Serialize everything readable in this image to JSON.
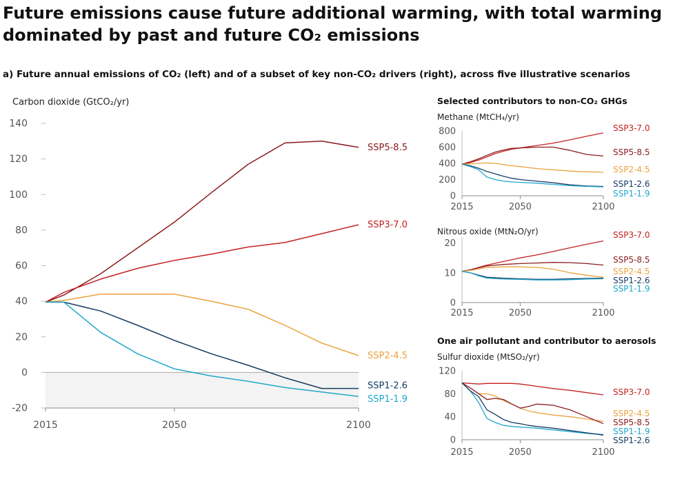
{
  "title_line1": "Future emissions cause future additional warming, with total warming",
  "title_line2": "dominated by past and future CO₂ emissions",
  "subtitle": "a) Future annual emissions of CO₂ (left) and of a subset of key non-CO₂ drivers (right), across five illustrative scenarios",
  "right_heading_ghg": "Selected contributors to non-CO₂ GHGs",
  "right_heading_aerosol": "One air pollutant and contributor to aerosols",
  "colors": {
    "SSP1-1.9": "#1fa6cc",
    "SSP1-2.6": "#163b63",
    "SSP2-4.5": "#eba13b",
    "SSP3-7.0": "#c4201f",
    "SSP5-8.5": "#8a1a1c",
    "axis": "#bbbbbb",
    "negative_fill": "#f3f3f3"
  },
  "chart_data": [
    {
      "type": "line",
      "ylabel": "Carbon dioxide (GtCO₂/yr)",
      "xlim": [
        2015,
        2100
      ],
      "ylim": [
        -20,
        140
      ],
      "xticks": [
        2015,
        2050,
        2100
      ],
      "yticks": [
        -20,
        0,
        20,
        40,
        60,
        80,
        100,
        120,
        140
      ],
      "shade_below_zero": true,
      "x": [
        2015,
        2020,
        2030,
        2040,
        2050,
        2060,
        2070,
        2080,
        2090,
        2100
      ],
      "series": [
        {
          "name": "SSP5-8.5",
          "values": [
            39.5,
            43.5,
            55.5,
            70,
            84.5,
            101,
            117,
            129,
            130,
            126.5
          ]
        },
        {
          "name": "SSP3-7.0",
          "values": [
            39.5,
            45,
            52.5,
            58.5,
            63,
            66.5,
            70.5,
            73,
            78,
            83
          ]
        },
        {
          "name": "SSP2-4.5",
          "values": [
            39.5,
            40.5,
            44,
            44,
            44,
            40,
            35.5,
            26.5,
            16.5,
            9.5
          ]
        },
        {
          "name": "SSP1-2.6",
          "values": [
            39.5,
            39.5,
            34.5,
            26.5,
            18,
            10.5,
            4,
            -3,
            -9,
            -9
          ]
        },
        {
          "name": "SSP1-1.9",
          "values": [
            39.5,
            39.5,
            22.5,
            10.5,
            2,
            -2,
            -5,
            -8.5,
            -11,
            -13.5
          ]
        }
      ],
      "label_order_bottom": [
        "SSP1-2.6",
        "SSP1-1.9"
      ]
    },
    {
      "type": "line",
      "ylabel": "Methane (MtCH₄/yr)",
      "xlim": [
        2015,
        2100
      ],
      "ylim": [
        0,
        800
      ],
      "xticks": [
        2015,
        2050,
        2100
      ],
      "yticks": [
        0,
        200,
        400,
        600,
        800
      ],
      "x": [
        2015,
        2020,
        2025,
        2030,
        2035,
        2040,
        2045,
        2050,
        2060,
        2070,
        2080,
        2090,
        2100
      ],
      "series": [
        {
          "name": "SSP3-7.0",
          "values": [
            390,
            410,
            440,
            480,
            520,
            550,
            575,
            590,
            620,
            650,
            690,
            735,
            775
          ]
        },
        {
          "name": "SSP5-8.5",
          "values": [
            390,
            420,
            455,
            500,
            540,
            565,
            585,
            590,
            600,
            600,
            560,
            510,
            490
          ]
        },
        {
          "name": "SSP2-4.5",
          "values": [
            390,
            395,
            400,
            405,
            400,
            385,
            370,
            360,
            335,
            320,
            305,
            295,
            290
          ]
        },
        {
          "name": "SSP1-2.6",
          "values": [
            390,
            370,
            340,
            300,
            270,
            240,
            215,
            200,
            180,
            160,
            135,
            120,
            115
          ]
        },
        {
          "name": "SSP1-1.9",
          "values": [
            390,
            360,
            320,
            230,
            200,
            180,
            170,
            165,
            155,
            140,
            125,
            115,
            110
          ]
        }
      ]
    },
    {
      "type": "line",
      "ylabel": "Nitrous oxide (MtN₂O/yr)",
      "xlim": [
        2015,
        2100
      ],
      "ylim": [
        0,
        22
      ],
      "xticks": [
        2015,
        2050,
        2100
      ],
      "yticks": [
        0,
        10,
        20
      ],
      "x": [
        2015,
        2020,
        2025,
        2030,
        2040,
        2050,
        2060,
        2070,
        2080,
        2090,
        2100
      ],
      "series": [
        {
          "name": "SSP3-7.0",
          "values": [
            10.5,
            11,
            11.8,
            12.6,
            13.8,
            15,
            16,
            17.2,
            18.4,
            19.6,
            20.7
          ]
        },
        {
          "name": "SSP5-8.5",
          "values": [
            10.5,
            11,
            11.7,
            12.3,
            12.8,
            13.1,
            13.3,
            13.5,
            13.4,
            13.1,
            12.6
          ]
        },
        {
          "name": "SSP2-4.5",
          "values": [
            10.5,
            10.8,
            11.3,
            11.8,
            12,
            12,
            11.8,
            11.2,
            10,
            9.2,
            8.5
          ]
        },
        {
          "name": "SSP1-2.6",
          "values": [
            10.5,
            10,
            9.2,
            8.5,
            8.2,
            8,
            7.8,
            7.8,
            8,
            8.1,
            8.2
          ]
        },
        {
          "name": "SSP1-1.9",
          "values": [
            10.5,
            10,
            9,
            8.2,
            7.9,
            7.8,
            7.6,
            7.6,
            7.7,
            7.9,
            8
          ]
        }
      ]
    },
    {
      "type": "line",
      "ylabel": "Sulfur dioxide (MtSO₂/yr)",
      "xlim": [
        2015,
        2100
      ],
      "ylim": [
        0,
        120
      ],
      "xticks": [
        2015,
        2050,
        2100
      ],
      "yticks": [
        0,
        40,
        80,
        120
      ],
      "x": [
        2015,
        2020,
        2025,
        2030,
        2035,
        2040,
        2045,
        2050,
        2055,
        2060,
        2070,
        2080,
        2090,
        2100
      ],
      "series": [
        {
          "name": "SSP3-7.0",
          "values": [
            99,
            98,
            97,
            98,
            98,
            98,
            98,
            97,
            95,
            93,
            89,
            86,
            82,
            78
          ]
        },
        {
          "name": "SSP2-4.5",
          "values": [
            99,
            90,
            80,
            80,
            76,
            68,
            62,
            55,
            50,
            47,
            43,
            40,
            36,
            32
          ]
        },
        {
          "name": "SSP5-8.5",
          "values": [
            99,
            90,
            80,
            70,
            72,
            70,
            62,
            55,
            58,
            62,
            60,
            52,
            40,
            28
          ]
        },
        {
          "name": "SSP1-1.9",
          "values": [
            99,
            85,
            65,
            37,
            30,
            25,
            23,
            22,
            21,
            20,
            17,
            14,
            11,
            9
          ]
        },
        {
          "name": "SSP1-2.6",
          "values": [
            99,
            85,
            75,
            52,
            44,
            35,
            30,
            28,
            25,
            23,
            20,
            16,
            12,
            8
          ]
        }
      ]
    }
  ]
}
